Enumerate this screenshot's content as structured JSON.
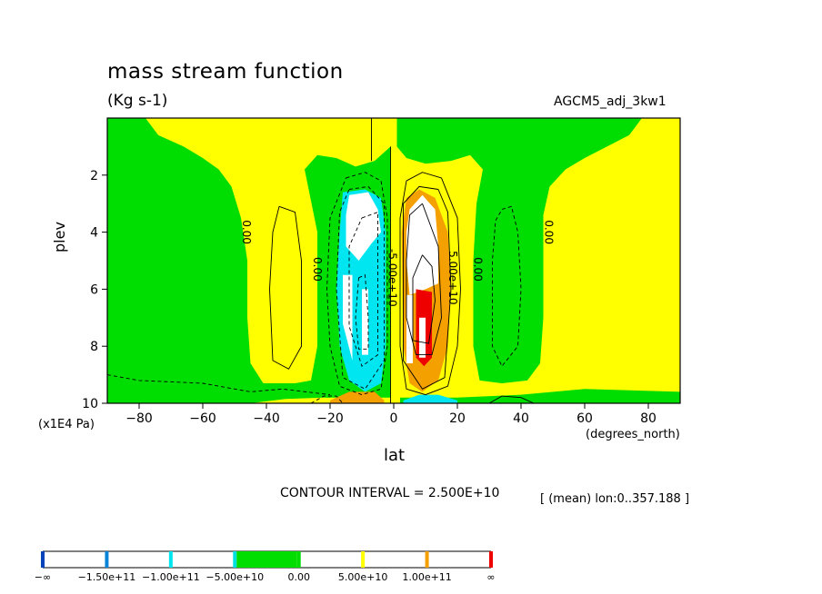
{
  "figure": {
    "title": "mass stream function",
    "units": "(Kg s-1)",
    "run_id": "AGCM5_adj_3kw1",
    "contour_interval_text": "CONTOUR INTERVAL = 2.500E+10",
    "mean_note": "[ (mean) lon:0..357.188 ]"
  },
  "chart_data": {
    "type": "heatmap",
    "subtype": "filled-contour",
    "xlabel": "lat",
    "x_units": "(degrees_north)",
    "ylabel": "plev",
    "y_units": "(x1E4 Pa)",
    "xlim": [
      -90,
      90
    ],
    "ylim": [
      10,
      0
    ],
    "x_ticks": [
      -80,
      -60,
      -40,
      -20,
      0,
      20,
      40,
      60,
      80
    ],
    "y_ticks": [
      2,
      4,
      6,
      8,
      10
    ],
    "x_tick_labels": [
      "−80",
      "−60",
      "−40",
      "−20",
      "0",
      "20",
      "40",
      "60",
      "80"
    ],
    "y_tick_labels": [
      "2",
      "4",
      "6",
      "8",
      "10"
    ],
    "contour_interval": 25000000000,
    "contour_labels": [
      {
        "text": "0.00",
        "lat": -47.5,
        "plev": 4.0
      },
      {
        "text": "0.00",
        "lat": -25.2,
        "plev": 5.3
      },
      {
        "text": "-5.00e+10",
        "lat": -1.6,
        "plev": 5.6
      },
      {
        "text": "5.00e+10",
        "lat": 17.4,
        "plev": 5.6
      },
      {
        "text": "0.00",
        "lat": 25.3,
        "plev": 5.3
      },
      {
        "text": "0.00",
        "lat": 47.6,
        "plev": 4.0
      }
    ],
    "colorbar": {
      "levels": [
        "−∞",
        "−1.50e+11",
        "−1.00e+11",
        "−5.00e+10",
        "0.00",
        "5.00e+10",
        "1.00e+11",
        "∞"
      ],
      "colors": [
        "#0044bb",
        "#0a84d6",
        "#00e6f0",
        "#00e0e0",
        "#00dd00",
        "#ffff00",
        "#f4a000",
        "#ee0000"
      ],
      "highlight_bin": [
        -50000000000,
        0
      ]
    },
    "colors": {
      "positive_low": "#ffff00",
      "negative_low": "#00dd00",
      "negative_mid": "#00e6f0",
      "positive_mid": "#f4a000",
      "positive_high": "#ee0000",
      "extreme": "#ffffff"
    },
    "features": [
      {
        "kind": "negative cell",
        "center_lat": -9,
        "center_plev": 6.5,
        "min_value": -100000000000
      },
      {
        "kind": "positive cell",
        "center_lat": 9,
        "center_plev": 6.8,
        "max_value": 125000000000
      }
    ]
  }
}
